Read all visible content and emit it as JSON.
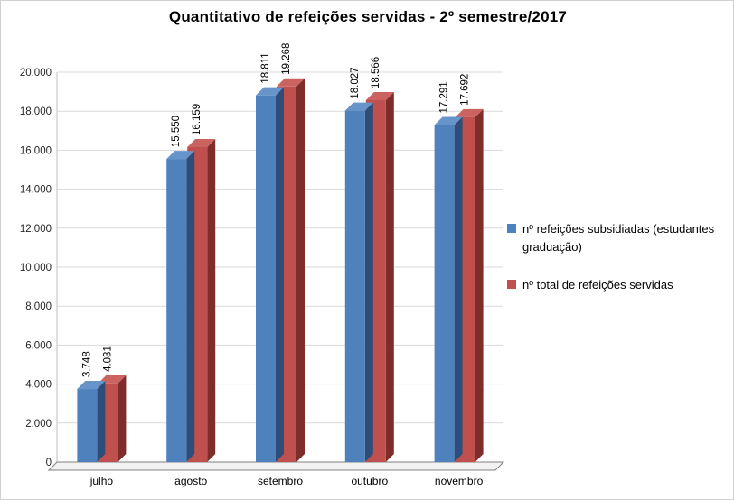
{
  "chart_data": {
    "type": "bar",
    "style": "3d-clustered-column",
    "title": "Quantitativo de refeições servidas - 2º semestre/2017",
    "categories": [
      "julho",
      "agosto",
      "setembro",
      "outubro",
      "novembro"
    ],
    "series": [
      {
        "name": "nº refeições subsidiadas (estudantes graduação)",
        "color": "#4F81BD",
        "color_dark": "#2E4E79",
        "color_top": "#6794C9",
        "values": [
          3748,
          15550,
          18811,
          18027,
          17291
        ],
        "labels": [
          "3.748",
          "15.550",
          "18.811",
          "18.027",
          "17.291"
        ]
      },
      {
        "name": "nº total de refeições servidas",
        "color": "#C0504D",
        "color_dark": "#7E2D2B",
        "color_top": "#CB6360",
        "values": [
          4031,
          16159,
          19268,
          18566,
          17692
        ],
        "labels": [
          "4.031",
          "16.159",
          "19.268",
          "18.566",
          "17.692"
        ]
      }
    ],
    "ylim": [
      0,
      20000
    ],
    "ytick_step": 2000,
    "ytick_labels": [
      "0",
      "2.000",
      "4.000",
      "6.000",
      "8.000",
      "10.000",
      "12.000",
      "14.000",
      "16.000",
      "18.000",
      "20.000"
    ],
    "grid": true,
    "legend_position": "right"
  }
}
